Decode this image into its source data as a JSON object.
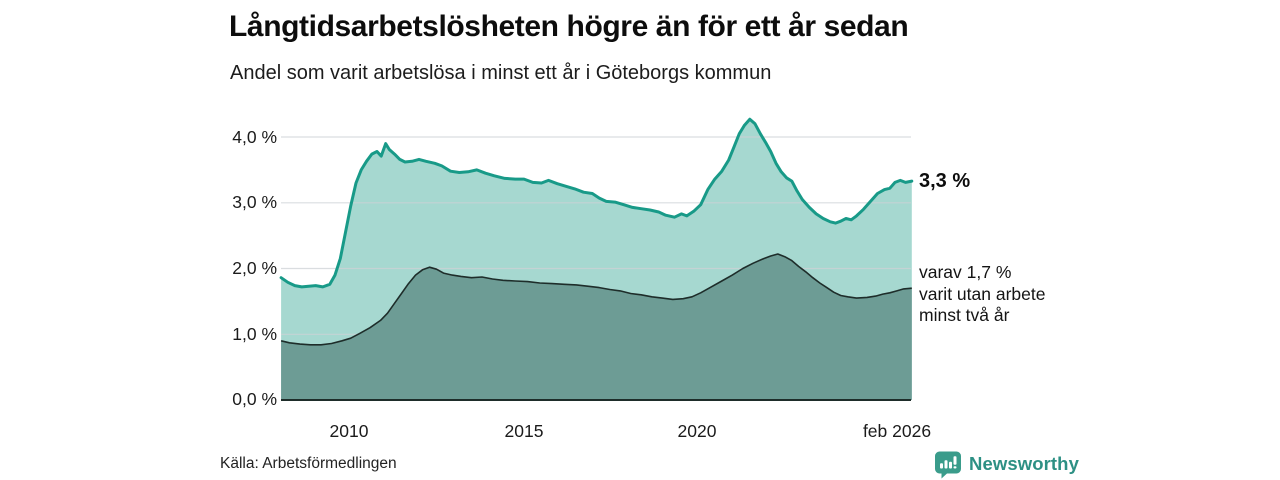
{
  "header": {
    "title": "Långtidsarbetslösheten högre än för ett år sedan",
    "subtitle": "Andel som varit arbetslösa i minst ett år i Göteborgs kommun"
  },
  "chart_data": {
    "type": "area",
    "title": "Långtidsarbetslösheten högre än för ett år sedan",
    "subtitle": "Andel som varit arbetslösa i minst ett år i Göteborgs kommun",
    "unit": "%",
    "grid": true,
    "style": {
      "gridline": "#cdd2d6",
      "axis": "#1e2d2a",
      "background": "#ffffff"
    },
    "x_axis": {
      "range": [
        2008.06,
        2026.08
      ],
      "ticks": [
        {
          "label": "2010",
          "value": 2010
        },
        {
          "label": "2015",
          "value": 2015
        },
        {
          "label": "2020",
          "value": 2020
        },
        {
          "label": "feb 2026",
          "value": 2026.08
        }
      ]
    },
    "y_axis": {
      "range": [
        0,
        4.35
      ],
      "gridlines": [
        1,
        2,
        3,
        4
      ],
      "ticks": [
        {
          "label": "4,0 %",
          "value": 4
        },
        {
          "label": "3,0 %",
          "value": 3
        },
        {
          "label": "2,0 %",
          "value": 2
        },
        {
          "label": "1,0 %",
          "value": 1
        },
        {
          "label": "0,0 %",
          "value": 0
        }
      ]
    },
    "series": [
      {
        "name": "Andel som varit arbetslösa i minst ett år",
        "line": "#189a88",
        "fill": "#a6d8d0",
        "latest_label": "3,3 %",
        "points": [
          [
            2008.06,
            1.86
          ],
          [
            2008.25,
            1.79
          ],
          [
            2008.45,
            1.74
          ],
          [
            2008.65,
            1.72
          ],
          [
            2008.85,
            1.73
          ],
          [
            2009.05,
            1.74
          ],
          [
            2009.25,
            1.72
          ],
          [
            2009.45,
            1.76
          ],
          [
            2009.6,
            1.9
          ],
          [
            2009.75,
            2.15
          ],
          [
            2009.9,
            2.55
          ],
          [
            2010.05,
            2.95
          ],
          [
            2010.2,
            3.3
          ],
          [
            2010.35,
            3.5
          ],
          [
            2010.5,
            3.63
          ],
          [
            2010.65,
            3.74
          ],
          [
            2010.8,
            3.78
          ],
          [
            2010.92,
            3.71
          ],
          [
            2011.05,
            3.9
          ],
          [
            2011.15,
            3.81
          ],
          [
            2011.3,
            3.74
          ],
          [
            2011.45,
            3.66
          ],
          [
            2011.6,
            3.62
          ],
          [
            2011.8,
            3.63
          ],
          [
            2012.0,
            3.66
          ],
          [
            2012.2,
            3.63
          ],
          [
            2012.45,
            3.6
          ],
          [
            2012.65,
            3.56
          ],
          [
            2012.9,
            3.48
          ],
          [
            2013.15,
            3.46
          ],
          [
            2013.4,
            3.47
          ],
          [
            2013.65,
            3.5
          ],
          [
            2013.9,
            3.45
          ],
          [
            2014.15,
            3.41
          ],
          [
            2014.45,
            3.37
          ],
          [
            2014.75,
            3.36
          ],
          [
            2015.0,
            3.36
          ],
          [
            2015.25,
            3.31
          ],
          [
            2015.5,
            3.3
          ],
          [
            2015.7,
            3.34
          ],
          [
            2015.95,
            3.29
          ],
          [
            2016.2,
            3.25
          ],
          [
            2016.45,
            3.21
          ],
          [
            2016.7,
            3.16
          ],
          [
            2016.95,
            3.14
          ],
          [
            2017.15,
            3.07
          ],
          [
            2017.35,
            3.02
          ],
          [
            2017.6,
            3.01
          ],
          [
            2017.85,
            2.97
          ],
          [
            2018.1,
            2.93
          ],
          [
            2018.35,
            2.91
          ],
          [
            2018.6,
            2.89
          ],
          [
            2018.85,
            2.86
          ],
          [
            2019.05,
            2.81
          ],
          [
            2019.3,
            2.78
          ],
          [
            2019.5,
            2.83
          ],
          [
            2019.65,
            2.8
          ],
          [
            2019.85,
            2.87
          ],
          [
            2020.05,
            2.97
          ],
          [
            2020.25,
            3.2
          ],
          [
            2020.45,
            3.36
          ],
          [
            2020.65,
            3.48
          ],
          [
            2020.85,
            3.65
          ],
          [
            2021.0,
            3.85
          ],
          [
            2021.15,
            4.05
          ],
          [
            2021.3,
            4.18
          ],
          [
            2021.45,
            4.27
          ],
          [
            2021.6,
            4.2
          ],
          [
            2021.75,
            4.05
          ],
          [
            2021.9,
            3.92
          ],
          [
            2022.05,
            3.78
          ],
          [
            2022.2,
            3.6
          ],
          [
            2022.35,
            3.47
          ],
          [
            2022.5,
            3.38
          ],
          [
            2022.65,
            3.33
          ],
          [
            2022.8,
            3.18
          ],
          [
            2022.95,
            3.05
          ],
          [
            2023.15,
            2.93
          ],
          [
            2023.35,
            2.83
          ],
          [
            2023.55,
            2.76
          ],
          [
            2023.75,
            2.71
          ],
          [
            2023.9,
            2.69
          ],
          [
            2024.05,
            2.72
          ],
          [
            2024.2,
            2.76
          ],
          [
            2024.35,
            2.74
          ],
          [
            2024.5,
            2.8
          ],
          [
            2024.7,
            2.9
          ],
          [
            2024.9,
            3.02
          ],
          [
            2025.1,
            3.14
          ],
          [
            2025.3,
            3.2
          ],
          [
            2025.45,
            3.22
          ],
          [
            2025.6,
            3.31
          ],
          [
            2025.75,
            3.34
          ],
          [
            2025.9,
            3.31
          ],
          [
            2026.08,
            3.33
          ]
        ]
      },
      {
        "name": "varav varit utan arbete minst två år",
        "line": "#1e2d2a",
        "fill": "#6d9c95",
        "latest_label": "1,7 %",
        "points": [
          [
            2008.06,
            0.9
          ],
          [
            2008.3,
            0.87
          ],
          [
            2008.6,
            0.85
          ],
          [
            2008.9,
            0.84
          ],
          [
            2009.2,
            0.84
          ],
          [
            2009.5,
            0.86
          ],
          [
            2009.8,
            0.9
          ],
          [
            2010.05,
            0.94
          ],
          [
            2010.3,
            1.01
          ],
          [
            2010.6,
            1.1
          ],
          [
            2010.9,
            1.21
          ],
          [
            2011.1,
            1.32
          ],
          [
            2011.3,
            1.47
          ],
          [
            2011.5,
            1.62
          ],
          [
            2011.7,
            1.77
          ],
          [
            2011.9,
            1.9
          ],
          [
            2012.1,
            1.98
          ],
          [
            2012.3,
            2.02
          ],
          [
            2012.5,
            1.99
          ],
          [
            2012.7,
            1.93
          ],
          [
            2012.95,
            1.9
          ],
          [
            2013.2,
            1.88
          ],
          [
            2013.5,
            1.86
          ],
          [
            2013.8,
            1.87
          ],
          [
            2014.1,
            1.84
          ],
          [
            2014.4,
            1.82
          ],
          [
            2014.75,
            1.81
          ],
          [
            2015.1,
            1.8
          ],
          [
            2015.45,
            1.78
          ],
          [
            2015.8,
            1.77
          ],
          [
            2016.15,
            1.76
          ],
          [
            2016.5,
            1.75
          ],
          [
            2016.85,
            1.73
          ],
          [
            2017.15,
            1.71
          ],
          [
            2017.45,
            1.68
          ],
          [
            2017.75,
            1.66
          ],
          [
            2018.05,
            1.62
          ],
          [
            2018.35,
            1.6
          ],
          [
            2018.65,
            1.57
          ],
          [
            2018.95,
            1.55
          ],
          [
            2019.25,
            1.53
          ],
          [
            2019.55,
            1.54
          ],
          [
            2019.8,
            1.57
          ],
          [
            2020.05,
            1.63
          ],
          [
            2020.35,
            1.72
          ],
          [
            2020.65,
            1.81
          ],
          [
            2020.95,
            1.9
          ],
          [
            2021.25,
            2.0
          ],
          [
            2021.55,
            2.08
          ],
          [
            2021.85,
            2.15
          ],
          [
            2022.05,
            2.19
          ],
          [
            2022.25,
            2.22
          ],
          [
            2022.45,
            2.18
          ],
          [
            2022.65,
            2.12
          ],
          [
            2022.85,
            2.03
          ],
          [
            2023.05,
            1.95
          ],
          [
            2023.25,
            1.86
          ],
          [
            2023.45,
            1.78
          ],
          [
            2023.65,
            1.71
          ],
          [
            2023.85,
            1.64
          ],
          [
            2024.05,
            1.59
          ],
          [
            2024.25,
            1.57
          ],
          [
            2024.5,
            1.55
          ],
          [
            2024.8,
            1.56
          ],
          [
            2025.05,
            1.58
          ],
          [
            2025.25,
            1.61
          ],
          [
            2025.45,
            1.63
          ],
          [
            2025.65,
            1.66
          ],
          [
            2025.85,
            1.69
          ],
          [
            2026.08,
            1.7
          ]
        ]
      }
    ],
    "annotations": {
      "latest_total": "3,3 %",
      "latest_sub_line1": "varav 1,7 %",
      "latest_sub_line2": "varit utan arbete",
      "latest_sub_line3": "minst två år"
    },
    "legend_position": "right-annotations"
  },
  "footer": {
    "source": "Källa: Arbetsförmedlingen",
    "brand_name": "Newsworthy"
  },
  "colors": {
    "accent_teal": "#189a88",
    "light_fill": "#a6d8d0",
    "dark_fill": "#6d9c95",
    "dark_line": "#1e2d2a",
    "brand_teal": "#3a9c8b",
    "brand_text": "#2d9084"
  }
}
